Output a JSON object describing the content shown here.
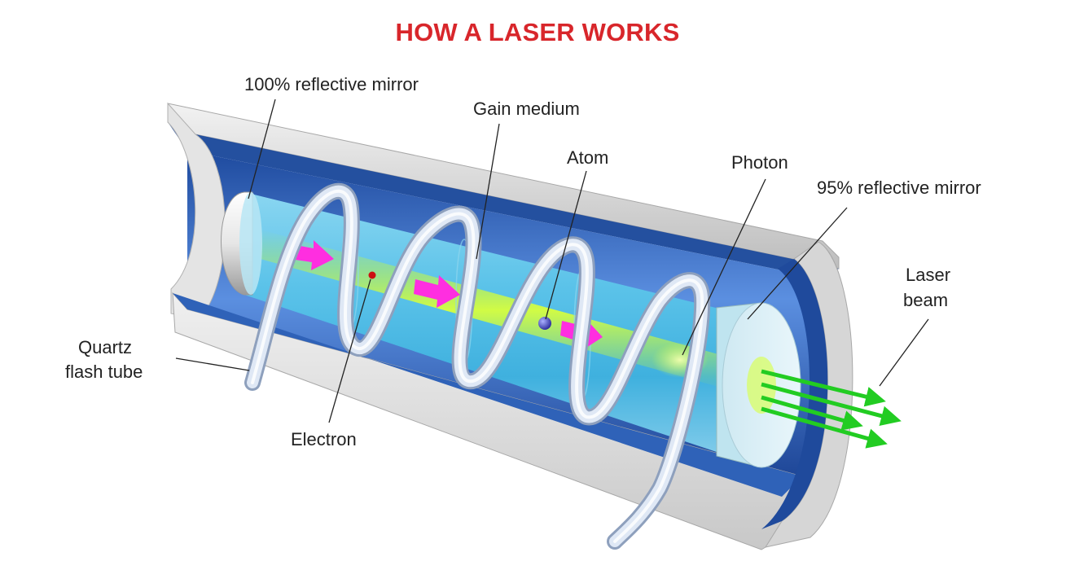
{
  "title": "HOW A LASER WORKS",
  "labels": {
    "mirror_100": "100% reflective mirror",
    "gain_medium": "Gain medium",
    "atom": "Atom",
    "photon": "Photon",
    "mirror_95": "95% reflective mirror",
    "laser_beam_line1": "Laser",
    "laser_beam_line2": "beam",
    "flash_tube_line1": "Quartz",
    "flash_tube_line2": "flash tube",
    "electron": "Electron"
  },
  "colors": {
    "title": "#d8262b",
    "housing_outer": "#d9d9d9",
    "housing_inner": "#2f5fb0",
    "gain_medium": "#54c4e6",
    "beam_core": "#d6ff3a",
    "photon_arrow": "#ff2ee0",
    "laser_beam": "#22cc22",
    "coil": "#dfe8f5",
    "electron": "#cc1111",
    "atom": "#3a3ab8"
  }
}
